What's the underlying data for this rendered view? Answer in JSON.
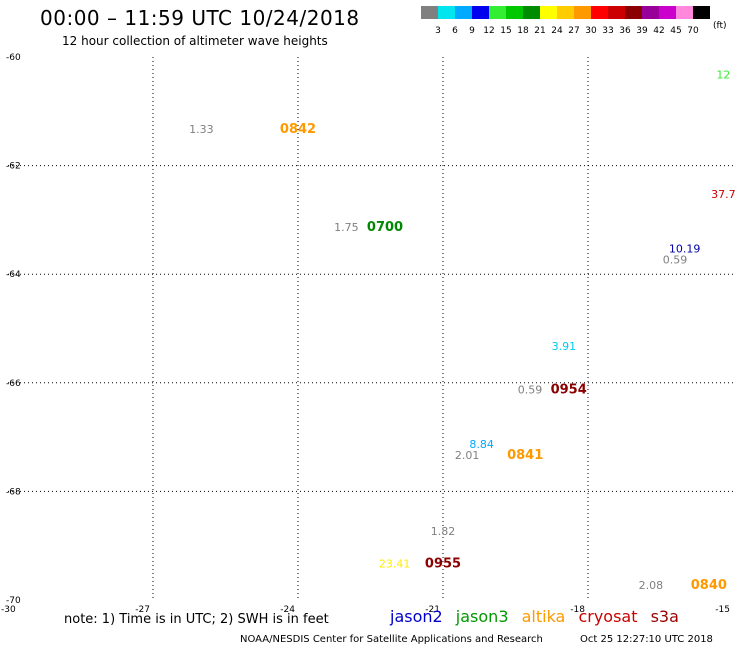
{
  "header": {
    "title": "00:00 – 11:59 UTC 10/24/2018",
    "subtitle": "12 hour collection of altimeter wave heights"
  },
  "colorbar": {
    "unit": "(ft)",
    "items": [
      {
        "label": "3",
        "color": "#808080"
      },
      {
        "label": "6",
        "color": "#00e5ee"
      },
      {
        "label": "9",
        "color": "#00aaff"
      },
      {
        "label": "12",
        "color": "#0000ee"
      },
      {
        "label": "15",
        "color": "#33ee33"
      },
      {
        "label": "18",
        "color": "#00c800"
      },
      {
        "label": "21",
        "color": "#008c00"
      },
      {
        "label": "24",
        "color": "#ffff00"
      },
      {
        "label": "27",
        "color": "#ffcc00"
      },
      {
        "label": "30",
        "color": "#ff9900"
      },
      {
        "label": "33",
        "color": "#ff0000"
      },
      {
        "label": "36",
        "color": "#cc0000"
      },
      {
        "label": "39",
        "color": "#8b0000"
      },
      {
        "label": "42",
        "color": "#990099"
      },
      {
        "label": "45",
        "color": "#cc00cc"
      },
      {
        "label": "70",
        "color": "#ff88dd"
      },
      {
        "label": "",
        "color": "#000000"
      }
    ]
  },
  "note": "note: 1) Time is in UTC; 2) SWH is in feet",
  "legend": [
    {
      "label": "jason2",
      "color": "#0000cc"
    },
    {
      "label": "jason3",
      "color": "#009900"
    },
    {
      "label": "altika",
      "color": "#ff9900"
    },
    {
      "label": "cryosat",
      "color": "#cc0000"
    },
    {
      "label": "s3a",
      "color": "#990000"
    }
  ],
  "footer": {
    "credit": "NOAA/NESDIS Center for Satellite Applications and Research",
    "timestamp": "Oct 25 12:27:10 UTC 2018"
  },
  "chart_data": {
    "type": "scatter",
    "xlim": [
      -30,
      -15
    ],
    "ylim": [
      -70,
      -60
    ],
    "x_ticks": [
      {
        "value": -27,
        "label": "-27"
      },
      {
        "value": -24,
        "label": "-24"
      },
      {
        "value": -21,
        "label": "-21"
      },
      {
        "value": -18,
        "label": "-18"
      },
      {
        "value": -15,
        "label": "-15"
      }
    ],
    "x_corner_label": "-30",
    "y_ticks": [
      {
        "value": -60,
        "label": "-60"
      },
      {
        "value": -62,
        "label": "-62"
      },
      {
        "value": -64,
        "label": "-64"
      },
      {
        "value": -66,
        "label": "-66"
      },
      {
        "value": -68,
        "label": "-68"
      },
      {
        "value": -70,
        "label": "-70"
      }
    ],
    "grid": true,
    "wave_heights": [
      {
        "x": -15.2,
        "y": -60.4,
        "value": "12",
        "color": "#33ee33"
      },
      {
        "x": -26.0,
        "y": -61.4,
        "value": "1.33",
        "color": "#808080"
      },
      {
        "x": -15.2,
        "y": -62.6,
        "value": "37.7",
        "color": "#cc0000"
      },
      {
        "x": -23.0,
        "y": -63.2,
        "value": "1.75",
        "color": "#808080"
      },
      {
        "x": -16.0,
        "y": -63.6,
        "value": "10.19",
        "color": "#0000aa"
      },
      {
        "x": -16.2,
        "y": -63.8,
        "value": "0.59",
        "color": "#808080"
      },
      {
        "x": -18.5,
        "y": -65.4,
        "value": "3.91",
        "color": "#00ccee"
      },
      {
        "x": -19.2,
        "y": -66.2,
        "value": "0.59",
        "color": "#808080"
      },
      {
        "x": -20.2,
        "y": -67.2,
        "value": "8.84",
        "color": "#00aaff"
      },
      {
        "x": -20.5,
        "y": -67.4,
        "value": "2.01",
        "color": "#808080"
      },
      {
        "x": -21.0,
        "y": -68.8,
        "value": "1.82",
        "color": "#808080"
      },
      {
        "x": -22.0,
        "y": -69.4,
        "value": "23.41",
        "color": "#ffee00"
      },
      {
        "x": -16.7,
        "y": -69.8,
        "value": "2.08",
        "color": "#808080"
      }
    ],
    "pass_times": [
      {
        "x": -24.0,
        "y": -61.4,
        "time": "0842",
        "color": "#ff9900"
      },
      {
        "x": -22.2,
        "y": -63.2,
        "time": "0700",
        "color": "#008800"
      },
      {
        "x": -18.4,
        "y": -66.2,
        "time": "0954",
        "color": "#8b0000"
      },
      {
        "x": -19.3,
        "y": -67.4,
        "time": "0841",
        "color": "#ff9900"
      },
      {
        "x": -21.0,
        "y": -69.4,
        "time": "0955",
        "color": "#8b0000"
      },
      {
        "x": -15.5,
        "y": -69.8,
        "time": "0840",
        "color": "#ff9900"
      }
    ]
  }
}
